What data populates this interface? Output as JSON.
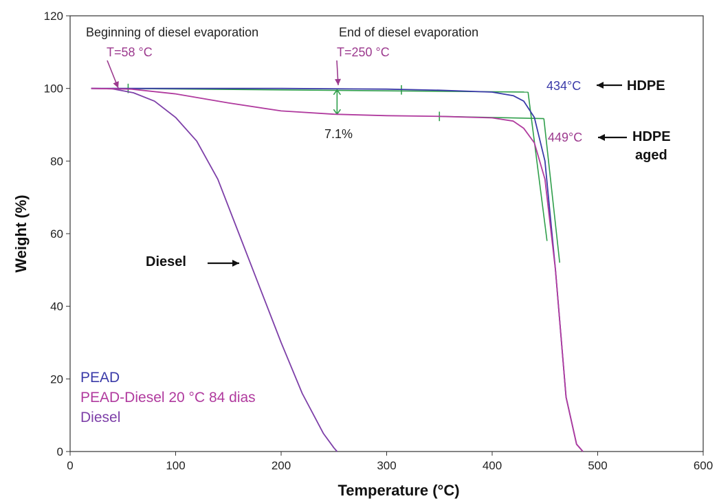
{
  "chart_data": {
    "type": "line",
    "xlabel": "Temperature (°C)",
    "ylabel": "Weight (%)",
    "xlim": [
      0,
      600
    ],
    "ylim": [
      0,
      120
    ],
    "x_ticks": [
      0,
      100,
      200,
      300,
      400,
      500,
      600
    ],
    "y_ticks": [
      0,
      20,
      40,
      60,
      80,
      100,
      120
    ],
    "grid": false,
    "legend_position": "bottom-left",
    "series": [
      {
        "name": "PEAD",
        "color": "#3a3aa8",
        "x": [
          20,
          100,
          200,
          300,
          350,
          400,
          420,
          430,
          440,
          450,
          460,
          470,
          480,
          486
        ],
        "y": [
          100,
          100,
          100,
          99.8,
          99.5,
          99,
          98,
          96.5,
          92,
          80,
          50,
          15,
          2,
          0
        ]
      },
      {
        "name": "PEAD-Diesel 20 °C 84 dias",
        "color": "#b03a9e",
        "x": [
          20,
          58,
          100,
          150,
          200,
          250,
          300,
          350,
          400,
          420,
          430,
          440,
          450,
          460,
          470,
          480,
          486
        ],
        "y": [
          100,
          99.8,
          98.5,
          96,
          93.8,
          92.9,
          92.5,
          92.3,
          91.9,
          91,
          89,
          85,
          75,
          50,
          15,
          2,
          0
        ]
      },
      {
        "name": "Diesel",
        "color": "#7d3fa8",
        "x": [
          20,
          40,
          60,
          80,
          100,
          120,
          140,
          160,
          180,
          200,
          220,
          240,
          250,
          253
        ],
        "y": [
          100,
          99.9,
          98.8,
          96.5,
          92,
          85.5,
          75,
          60,
          45,
          30,
          16,
          5,
          1,
          0
        ]
      }
    ],
    "annotations": {
      "begin_label": "Beginning of diesel evaporation",
      "begin_temp": "T=58 °C",
      "end_label": "End of diesel evaporation",
      "end_temp": "T=250 °C",
      "mass_loss": "7.1%",
      "hdpe_onset": "434°C",
      "hdpe_label": "HDPE",
      "aged_onset": "449°C",
      "aged_label_1": "HDPE",
      "aged_label_2": "aged",
      "diesel_label": "Diesel"
    },
    "tangent_color": "#2e9e4a"
  }
}
